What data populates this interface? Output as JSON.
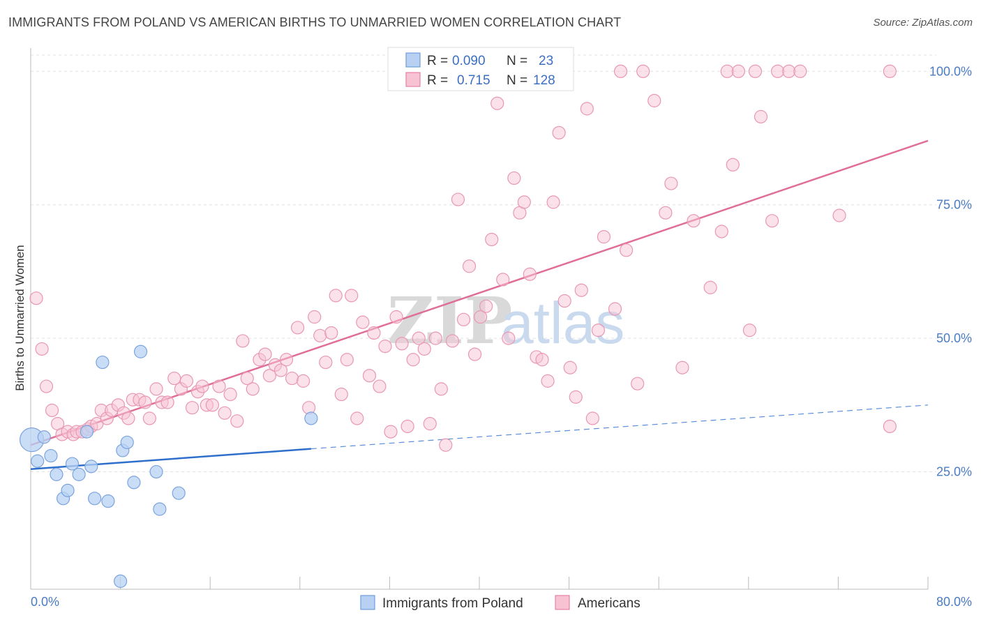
{
  "title": "IMMIGRANTS FROM POLAND VS AMERICAN BIRTHS TO UNMARRIED WOMEN CORRELATION CHART",
  "source": "Source: ZipAtlas.com",
  "watermark": {
    "zip": "ZIP",
    "atlas": "atlas"
  },
  "colors": {
    "blue": "#5b8fd6",
    "blue_fill": "#b8d1f3",
    "pink": "#e06e98",
    "pink_fill": "#f7c3d3",
    "tick": "#4a7cc4"
  },
  "legend": {
    "rows": [
      {
        "r_label": "R =",
        "r_value": "0.090",
        "n_label": "N =",
        "n_value": "23"
      },
      {
        "r_label": "R =",
        "r_value": "0.715",
        "n_label": "N =",
        "n_value": "128"
      }
    ]
  },
  "bottom_legend": [
    "Immigrants from Poland",
    "Americans"
  ],
  "chart_data": {
    "type": "scatter",
    "title": "IMMIGRANTS FROM POLAND VS AMERICAN BIRTHS TO UNMARRIED WOMEN CORRELATION CHART",
    "xlabel": "",
    "ylabel": "Births to Unmarried Women",
    "xlim": [
      0,
      80
    ],
    "ylim": [
      3,
      105
    ],
    "x_tick_labels": [
      "0.0%",
      "80.0%"
    ],
    "y_ticks": [
      25,
      50,
      75,
      100
    ],
    "y_tick_labels": [
      "25.0%",
      "50.0%",
      "75.0%",
      "100.0%"
    ],
    "grid": true,
    "legend_position": "top-center",
    "series": [
      {
        "name": "Immigrants from Poland",
        "color": "#5b8fd6",
        "points": [
          [
            0.1,
            31.0
          ],
          [
            0.6,
            27.0
          ],
          [
            1.2,
            31.5
          ],
          [
            1.8,
            28.0
          ],
          [
            2.3,
            24.5
          ],
          [
            2.9,
            20.0
          ],
          [
            3.3,
            21.5
          ],
          [
            3.7,
            26.5
          ],
          [
            4.3,
            24.5
          ],
          [
            5.0,
            32.5
          ],
          [
            5.4,
            26.0
          ],
          [
            5.7,
            20.0
          ],
          [
            6.4,
            45.5
          ],
          [
            6.9,
            19.5
          ],
          [
            8.0,
            4.5
          ],
          [
            8.2,
            29.0
          ],
          [
            8.6,
            30.5
          ],
          [
            9.2,
            23.0
          ],
          [
            9.8,
            47.5
          ],
          [
            11.2,
            25.0
          ],
          [
            11.5,
            18.0
          ],
          [
            13.2,
            21.0
          ],
          [
            25.0,
            35.0
          ]
        ],
        "trend": {
          "x": [
            0,
            25
          ],
          "y": [
            25.5,
            29.3
          ]
        },
        "trend_extension": {
          "x": [
            25,
            80
          ],
          "y": [
            29.3,
            37.5
          ]
        }
      },
      {
        "name": "Americans",
        "color": "#e06e98",
        "points": [
          [
            0.5,
            57.5
          ],
          [
            1.0,
            48.0
          ],
          [
            1.4,
            41.0
          ],
          [
            1.9,
            36.5
          ],
          [
            2.4,
            34.0
          ],
          [
            2.8,
            32.0
          ],
          [
            3.3,
            32.5
          ],
          [
            3.8,
            32.0
          ],
          [
            4.1,
            32.5
          ],
          [
            4.6,
            32.5
          ],
          [
            5.1,
            33.0
          ],
          [
            5.4,
            33.5
          ],
          [
            5.9,
            34.0
          ],
          [
            6.3,
            36.5
          ],
          [
            6.8,
            35.0
          ],
          [
            7.2,
            36.5
          ],
          [
            7.8,
            37.5
          ],
          [
            8.3,
            36.0
          ],
          [
            8.7,
            35.0
          ],
          [
            9.1,
            38.5
          ],
          [
            9.7,
            38.5
          ],
          [
            10.2,
            38.0
          ],
          [
            10.6,
            35.0
          ],
          [
            11.2,
            40.5
          ],
          [
            11.7,
            38.0
          ],
          [
            12.2,
            38.0
          ],
          [
            12.8,
            42.5
          ],
          [
            13.4,
            40.5
          ],
          [
            13.9,
            42.0
          ],
          [
            14.4,
            37.0
          ],
          [
            14.9,
            40.0
          ],
          [
            15.3,
            41.0
          ],
          [
            15.7,
            37.5
          ],
          [
            16.2,
            37.5
          ],
          [
            16.8,
            41.0
          ],
          [
            17.3,
            36.0
          ],
          [
            17.8,
            39.5
          ],
          [
            18.4,
            34.5
          ],
          [
            18.9,
            49.5
          ],
          [
            19.3,
            42.5
          ],
          [
            19.8,
            40.5
          ],
          [
            20.4,
            46.0
          ],
          [
            20.9,
            47.0
          ],
          [
            21.3,
            43.0
          ],
          [
            21.8,
            45.0
          ],
          [
            22.3,
            44.0
          ],
          [
            22.8,
            46.0
          ],
          [
            23.3,
            42.5
          ],
          [
            23.8,
            52.0
          ],
          [
            24.3,
            42.0
          ],
          [
            24.8,
            37.0
          ],
          [
            25.3,
            54.0
          ],
          [
            25.8,
            50.5
          ],
          [
            26.3,
            45.5
          ],
          [
            26.8,
            51.0
          ],
          [
            27.2,
            58.0
          ],
          [
            27.7,
            39.5
          ],
          [
            28.2,
            46.0
          ],
          [
            28.6,
            58.0
          ],
          [
            29.1,
            35.0
          ],
          [
            29.6,
            53.0
          ],
          [
            30.2,
            43.0
          ],
          [
            30.6,
            51.0
          ],
          [
            31.1,
            41.0
          ],
          [
            31.6,
            48.5
          ],
          [
            32.1,
            32.5
          ],
          [
            32.6,
            54.0
          ],
          [
            33.1,
            49.0
          ],
          [
            33.6,
            33.5
          ],
          [
            34.1,
            46.0
          ],
          [
            34.6,
            50.0
          ],
          [
            35.1,
            48.0
          ],
          [
            35.6,
            34.0
          ],
          [
            36.1,
            50.0
          ],
          [
            36.6,
            40.5
          ],
          [
            37.0,
            30.0
          ],
          [
            37.6,
            49.5
          ],
          [
            38.1,
            76.0
          ],
          [
            38.6,
            53.5
          ],
          [
            39.1,
            63.5
          ],
          [
            39.6,
            47.0
          ],
          [
            40.1,
            54.0
          ],
          [
            40.6,
            56.0
          ],
          [
            41.1,
            68.5
          ],
          [
            41.6,
            94.0
          ],
          [
            42.1,
            61.0
          ],
          [
            42.6,
            50.0
          ],
          [
            43.1,
            80.0
          ],
          [
            43.6,
            73.5
          ],
          [
            44.0,
            75.5
          ],
          [
            44.5,
            62.0
          ],
          [
            45.1,
            46.5
          ],
          [
            45.6,
            46.0
          ],
          [
            46.1,
            42.0
          ],
          [
            46.6,
            75.5
          ],
          [
            47.1,
            88.5
          ],
          [
            47.6,
            57.0
          ],
          [
            48.1,
            44.5
          ],
          [
            48.6,
            39.0
          ],
          [
            49.1,
            59.0
          ],
          [
            49.6,
            93.0
          ],
          [
            50.1,
            35.0
          ],
          [
            50.6,
            51.5
          ],
          [
            51.1,
            69.0
          ],
          [
            52.1,
            55.5
          ],
          [
            52.6,
            100.0
          ],
          [
            53.1,
            66.5
          ],
          [
            54.1,
            41.5
          ],
          [
            54.6,
            100.0
          ],
          [
            55.6,
            94.5
          ],
          [
            56.6,
            73.5
          ],
          [
            57.1,
            79.0
          ],
          [
            58.1,
            44.5
          ],
          [
            59.1,
            72.0
          ],
          [
            60.6,
            59.5
          ],
          [
            61.6,
            70.0
          ],
          [
            62.1,
            100.0
          ],
          [
            62.6,
            82.5
          ],
          [
            63.1,
            100.0
          ],
          [
            64.1,
            51.5
          ],
          [
            64.6,
            100.0
          ],
          [
            65.1,
            91.5
          ],
          [
            66.1,
            72.0
          ],
          [
            66.6,
            100.0
          ],
          [
            67.6,
            100.0
          ],
          [
            68.6,
            100.0
          ],
          [
            72.1,
            73.0
          ],
          [
            76.6,
            100.0
          ],
          [
            76.6,
            33.5
          ]
        ],
        "trend": {
          "x": [
            0,
            80
          ],
          "y": [
            30,
            87
          ]
        }
      }
    ]
  }
}
